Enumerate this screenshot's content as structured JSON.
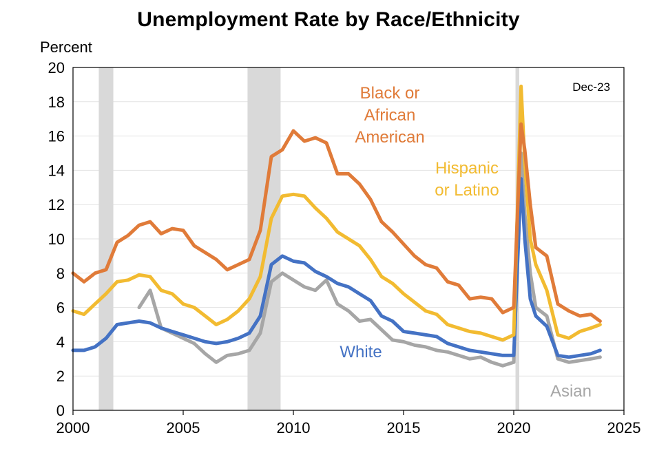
{
  "chart_data": {
    "type": "line",
    "title": "Unemployment Rate by Race/Ethnicity",
    "ylabel": "Percent",
    "xlabel": "",
    "note": "Dec-23",
    "xlim": [
      2000,
      2025
    ],
    "ylim": [
      0,
      20
    ],
    "x_ticks": [
      "2000",
      "2005",
      "2010",
      "2015",
      "2020",
      "2025"
    ],
    "y_ticks": [
      "0",
      "2",
      "4",
      "6",
      "8",
      "10",
      "12",
      "14",
      "16",
      "18",
      "20"
    ],
    "grid": "horizontal",
    "recession_shading": [
      [
        2001.17,
        2001.83
      ],
      [
        2007.92,
        2009.42
      ],
      [
        2020.08,
        2020.25
      ]
    ],
    "series": [
      {
        "name": "Black or African American",
        "label_lines": [
          "Black or",
          "African",
          "American"
        ],
        "color": "#E07B39",
        "x": [
          2000,
          2000.5,
          2001,
          2001.5,
          2002,
          2002.5,
          2003,
          2003.5,
          2004,
          2004.5,
          2005,
          2005.5,
          2006,
          2006.5,
          2007,
          2007.5,
          2008,
          2008.5,
          2009,
          2009.5,
          2010,
          2010.5,
          2011,
          2011.5,
          2012,
          2012.5,
          2013,
          2013.5,
          2014,
          2014.5,
          2015,
          2015.5,
          2016,
          2016.5,
          2017,
          2017.5,
          2018,
          2018.5,
          2019,
          2019.5,
          2020,
          2020.33,
          2020.5,
          2020.75,
          2021,
          2021.5,
          2022,
          2022.5,
          2023,
          2023.5,
          2023.92
        ],
        "values": [
          8.0,
          7.5,
          8.0,
          8.2,
          9.8,
          10.2,
          10.8,
          11.0,
          10.3,
          10.6,
          10.5,
          9.6,
          9.2,
          8.8,
          8.2,
          8.5,
          8.8,
          10.5,
          14.8,
          15.2,
          16.3,
          15.7,
          15.9,
          15.6,
          13.8,
          13.8,
          13.2,
          12.3,
          11.0,
          10.4,
          9.7,
          9.0,
          8.5,
          8.3,
          7.5,
          7.3,
          6.5,
          6.6,
          6.5,
          5.7,
          6.0,
          16.7,
          15.2,
          12.0,
          9.5,
          9.0,
          6.2,
          5.8,
          5.5,
          5.6,
          5.2
        ]
      },
      {
        "name": "Hispanic or Latino",
        "label_lines": [
          "Hispanic",
          "or Latino"
        ],
        "color": "#F2BB31",
        "x": [
          2000,
          2000.5,
          2001,
          2001.5,
          2002,
          2002.5,
          2003,
          2003.5,
          2004,
          2004.5,
          2005,
          2005.5,
          2006,
          2006.5,
          2007,
          2007.5,
          2008,
          2008.5,
          2009,
          2009.5,
          2010,
          2010.5,
          2011,
          2011.5,
          2012,
          2012.5,
          2013,
          2013.5,
          2014,
          2014.5,
          2015,
          2015.5,
          2016,
          2016.5,
          2017,
          2017.5,
          2018,
          2018.5,
          2019,
          2019.5,
          2020,
          2020.33,
          2020.5,
          2020.75,
          2021,
          2021.5,
          2022,
          2022.5,
          2023,
          2023.5,
          2023.92
        ],
        "values": [
          5.8,
          5.6,
          6.2,
          6.8,
          7.5,
          7.6,
          7.9,
          7.8,
          7.0,
          6.8,
          6.2,
          6.0,
          5.5,
          5.0,
          5.3,
          5.8,
          6.5,
          7.8,
          11.2,
          12.5,
          12.6,
          12.5,
          11.8,
          11.2,
          10.4,
          10.0,
          9.6,
          8.8,
          7.8,
          7.4,
          6.8,
          6.3,
          5.8,
          5.6,
          5.0,
          4.8,
          4.6,
          4.5,
          4.3,
          4.1,
          4.4,
          18.9,
          14.5,
          10.0,
          8.5,
          7.0,
          4.4,
          4.2,
          4.6,
          4.8,
          5.0
        ]
      },
      {
        "name": "White",
        "label_lines": [
          "White"
        ],
        "color": "#4472C4",
        "x": [
          2000,
          2000.5,
          2001,
          2001.5,
          2002,
          2002.5,
          2003,
          2003.5,
          2004,
          2004.5,
          2005,
          2005.5,
          2006,
          2006.5,
          2007,
          2007.5,
          2008,
          2008.5,
          2009,
          2009.5,
          2010,
          2010.5,
          2011,
          2011.5,
          2012,
          2012.5,
          2013,
          2013.5,
          2014,
          2014.5,
          2015,
          2015.5,
          2016,
          2016.5,
          2017,
          2017.5,
          2018,
          2018.5,
          2019,
          2019.5,
          2020,
          2020.33,
          2020.5,
          2020.75,
          2021,
          2021.5,
          2022,
          2022.5,
          2023,
          2023.5,
          2023.92
        ],
        "values": [
          3.5,
          3.5,
          3.7,
          4.2,
          5.0,
          5.1,
          5.2,
          5.1,
          4.8,
          4.6,
          4.4,
          4.2,
          4.0,
          3.9,
          4.0,
          4.2,
          4.5,
          5.5,
          8.5,
          9.0,
          8.7,
          8.6,
          8.1,
          7.8,
          7.4,
          7.2,
          6.8,
          6.4,
          5.5,
          5.2,
          4.6,
          4.5,
          4.4,
          4.3,
          3.9,
          3.7,
          3.5,
          3.4,
          3.3,
          3.2,
          3.2,
          13.5,
          10.0,
          6.5,
          5.5,
          4.9,
          3.2,
          3.1,
          3.2,
          3.3,
          3.5
        ]
      },
      {
        "name": "Asian",
        "label_lines": [
          "Asian"
        ],
        "color": "#A6A6A6",
        "x": [
          2003,
          2003.5,
          2004,
          2004.5,
          2005,
          2005.5,
          2006,
          2006.5,
          2007,
          2007.5,
          2008,
          2008.5,
          2009,
          2009.5,
          2010,
          2010.5,
          2011,
          2011.5,
          2012,
          2012.5,
          2013,
          2013.5,
          2014,
          2014.5,
          2015,
          2015.5,
          2016,
          2016.5,
          2017,
          2017.5,
          2018,
          2018.5,
          2019,
          2019.5,
          2020,
          2020.33,
          2020.5,
          2020.75,
          2021,
          2021.5,
          2022,
          2022.5,
          2023,
          2023.5,
          2023.92
        ],
        "values": [
          6.0,
          7.0,
          4.8,
          4.5,
          4.2,
          3.9,
          3.3,
          2.8,
          3.2,
          3.3,
          3.5,
          4.5,
          7.5,
          8.0,
          7.6,
          7.2,
          7.0,
          7.6,
          6.2,
          5.8,
          5.2,
          5.3,
          4.7,
          4.1,
          4.0,
          3.8,
          3.7,
          3.5,
          3.4,
          3.2,
          3.0,
          3.1,
          2.8,
          2.6,
          2.8,
          15.0,
          11.5,
          8.0,
          6.0,
          5.5,
          3.0,
          2.8,
          2.9,
          3.0,
          3.1
        ]
      }
    ]
  }
}
